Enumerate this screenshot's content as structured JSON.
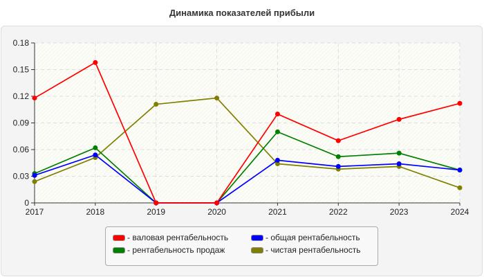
{
  "chart_data": {
    "type": "line",
    "title": "Динамика показателей прибыли",
    "x": [
      "2017",
      "2018",
      "2019",
      "2020",
      "2021",
      "2022",
      "2023",
      "2024"
    ],
    "ylim": [
      0,
      0.18
    ],
    "yticks": [
      "0",
      "0.03",
      "0.06",
      "0.09",
      "0.12",
      "0.15",
      "0.18"
    ],
    "grid": true,
    "legend_position": "bottom",
    "series": [
      {
        "name": "- валовая рентабельность",
        "color": "#ff0000",
        "values": [
          0.118,
          0.158,
          0,
          0,
          0.1,
          0.07,
          0.094,
          0.112
        ]
      },
      {
        "name": "- общая рентабельность",
        "color": "#0000ff",
        "values": [
          0.031,
          0.054,
          0,
          0,
          0.048,
          0.041,
          0.044,
          0.037
        ]
      },
      {
        "name": "- рентабельность продаж",
        "color": "#008000",
        "values": [
          0.033,
          0.062,
          0,
          0,
          0.08,
          0.052,
          0.056,
          0.037
        ]
      },
      {
        "name": "- чистая рентабельность",
        "color": "#808000",
        "values": [
          0.024,
          0.051,
          0.111,
          0.118,
          0.044,
          0.038,
          0.041,
          0.017
        ]
      }
    ]
  }
}
